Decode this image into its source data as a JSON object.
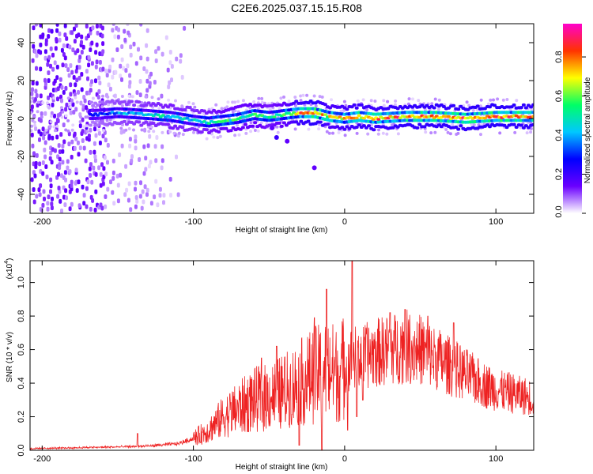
{
  "title": "C2E6.2025.037.15.15.R08",
  "chart_data": [
    {
      "type": "heatmap",
      "xlabel": "Height of straight line (km)",
      "ylabel": "Frequency (Hz)",
      "xlim": [
        -208,
        125
      ],
      "ylim": [
        -50,
        50
      ],
      "xticks": [
        -200,
        -100,
        0,
        100
      ],
      "yticks": [
        -40,
        -20,
        0,
        20,
        40
      ],
      "colorbar": {
        "label": "Normalized spectral amplitude",
        "range": [
          0,
          0.97
        ],
        "ticks": [
          0.0,
          0.2,
          0.4,
          0.6,
          0.8
        ],
        "colormap": [
          "#ffffff",
          "#6a00ff",
          "#0000ff",
          "#00c8ff",
          "#00ff66",
          "#ffff00",
          "#ff3300",
          "#ff00cc"
        ]
      },
      "ridge": {
        "x": [
          -165,
          -150,
          -130,
          -115,
          -100,
          -90,
          -80,
          -70,
          -60,
          -50,
          -40,
          -30,
          -20,
          -10,
          0,
          10,
          20,
          40,
          60,
          80,
          100,
          125
        ],
        "freq": [
          2,
          3,
          2,
          1,
          -1,
          -2,
          -1,
          0,
          2,
          1,
          2,
          3,
          3,
          1,
          0,
          1,
          0,
          1,
          1,
          0,
          1,
          1
        ],
        "amplitude": [
          0.3,
          0.4,
          0.45,
          0.5,
          0.45,
          0.5,
          0.55,
          0.55,
          0.6,
          0.5,
          0.6,
          0.8,
          0.9,
          0.7,
          0.75,
          0.8,
          0.8,
          0.85,
          0.85,
          0.85,
          0.9,
          0.85
        ]
      },
      "branch": {
        "x": [
          -48,
          -45,
          -38,
          -20
        ],
        "freq": [
          -5,
          -10,
          -12,
          -26
        ],
        "amplitude": [
          0.15,
          0.2,
          0.15,
          0.15
        ]
      }
    },
    {
      "type": "line",
      "xlabel": "Height of straight line (km)",
      "ylabel": "SNR (10 * v/v)",
      "yscale_label": "(x10",
      "yscale_exponent": "4",
      "yscale_close": ")",
      "xlim": [
        -208,
        125
      ],
      "ylim": [
        0,
        1.13
      ],
      "xticks": [
        -200,
        -100,
        0,
        100
      ],
      "yticks": [
        0.0,
        0.2,
        0.4,
        0.6,
        0.8,
        1.0
      ],
      "color": "#ee2222",
      "envelope": {
        "x": [
          -208,
          -180,
          -150,
          -130,
          -110,
          -100,
          -90,
          -80,
          -70,
          -60,
          -50,
          -40,
          -30,
          -20,
          -10,
          -5,
          0,
          5,
          10,
          20,
          30,
          40,
          50,
          60,
          70,
          80,
          90,
          100,
          110,
          125
        ],
        "y": [
          0.01,
          0.015,
          0.02,
          0.025,
          0.04,
          0.07,
          0.12,
          0.2,
          0.25,
          0.3,
          0.32,
          0.35,
          0.4,
          0.45,
          0.48,
          0.45,
          0.5,
          0.55,
          0.55,
          0.58,
          0.6,
          0.62,
          0.6,
          0.55,
          0.5,
          0.45,
          0.4,
          0.36,
          0.34,
          0.31
        ]
      },
      "peaks": [
        {
          "x": -137,
          "y": 0.1
        },
        {
          "x": -55,
          "y": 0.55
        },
        {
          "x": -45,
          "y": 0.62
        },
        {
          "x": -30,
          "y": 0.72
        },
        {
          "x": -20,
          "y": 0.79
        },
        {
          "x": -12,
          "y": 0.96
        },
        {
          "x": 5,
          "y": 1.14
        },
        {
          "x": 8,
          "y": 1.1
        },
        {
          "x": 30,
          "y": 0.82
        },
        {
          "x": 40,
          "y": 0.84
        },
        {
          "x": 55,
          "y": 0.8
        },
        {
          "x": 72,
          "y": 0.76
        }
      ],
      "dips": [
        {
          "x": -30,
          "y": 0.03
        },
        {
          "x": -15,
          "y": 0.0
        },
        {
          "x": 2,
          "y": 0.12
        },
        {
          "x": 8,
          "y": 0.2
        },
        {
          "x": 12,
          "y": 0.3
        }
      ]
    }
  ]
}
